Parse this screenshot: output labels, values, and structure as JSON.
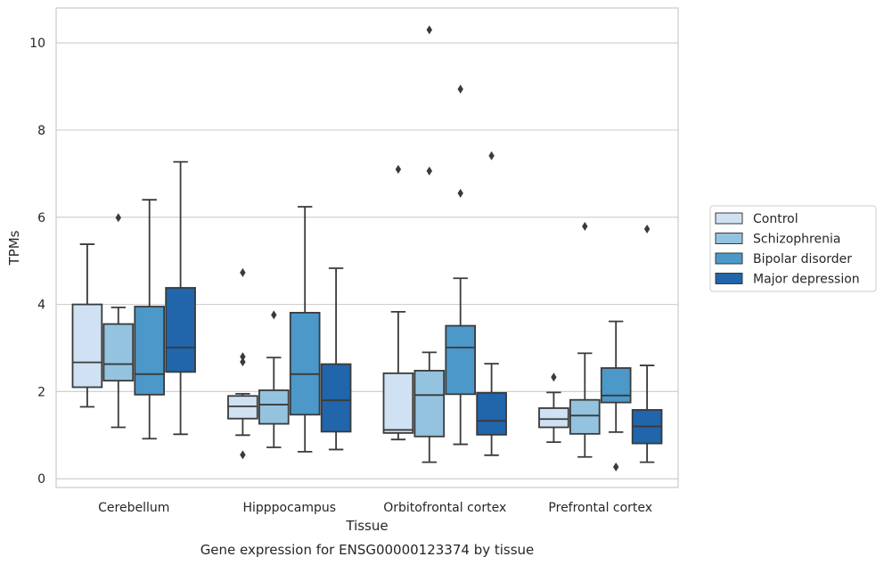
{
  "caption": "Gene expression for ENSG00000123374 by tissue",
  "colors": {
    "Control": "#cfe1f2",
    "Schizophrenia": "#93c3df",
    "Bipolar disorder": "#4b98c9",
    "Major depression": "#2165ab",
    "line": "#3a3a3a",
    "grid": "#d0d0d0",
    "frame": "#cccccc"
  },
  "chart_data": {
    "type": "box",
    "xlabel": "Tissue",
    "ylabel": "TPMs",
    "ylim": [
      -0.2,
      10.8
    ],
    "yticks": [
      0,
      2,
      4,
      6,
      8,
      10
    ],
    "grid": true,
    "legend_position": "right-outside",
    "categories": [
      "Cerebellum",
      "Hipppocampus",
      "Orbitofrontal cortex",
      "Prefrontal cortex"
    ],
    "series": [
      {
        "name": "Control",
        "boxes": [
          {
            "whisker_low": 1.65,
            "q1": 2.1,
            "median": 2.67,
            "q3": 4.0,
            "whisker_high": 5.38,
            "outliers": []
          },
          {
            "whisker_low": 1.0,
            "q1": 1.38,
            "median": 1.66,
            "q3": 1.9,
            "whisker_high": 1.95,
            "outliers": [
              0.55,
              2.68,
              2.8,
              4.73
            ]
          },
          {
            "whisker_low": 0.9,
            "q1": 1.05,
            "median": 1.12,
            "q3": 2.42,
            "whisker_high": 3.83,
            "outliers": [
              7.1
            ]
          },
          {
            "whisker_low": 0.84,
            "q1": 1.18,
            "median": 1.37,
            "q3": 1.62,
            "whisker_high": 1.98,
            "outliers": [
              2.33
            ]
          }
        ]
      },
      {
        "name": "Schizophrenia",
        "boxes": [
          {
            "whisker_low": 1.18,
            "q1": 2.25,
            "median": 2.63,
            "q3": 3.55,
            "whisker_high": 3.93,
            "outliers": [
              5.99
            ]
          },
          {
            "whisker_low": 0.72,
            "q1": 1.26,
            "median": 1.7,
            "q3": 2.03,
            "whisker_high": 2.78,
            "outliers": [
              3.76
            ]
          },
          {
            "whisker_low": 0.38,
            "q1": 0.97,
            "median": 1.92,
            "q3": 2.48,
            "whisker_high": 2.9,
            "outliers": [
              7.06,
              10.3
            ]
          },
          {
            "whisker_low": 0.5,
            "q1": 1.03,
            "median": 1.45,
            "q3": 1.81,
            "whisker_high": 2.88,
            "outliers": [
              5.79
            ]
          }
        ]
      },
      {
        "name": "Bipolar disorder",
        "boxes": [
          {
            "whisker_low": 0.92,
            "q1": 1.93,
            "median": 2.4,
            "q3": 3.95,
            "whisker_high": 6.4,
            "outliers": []
          },
          {
            "whisker_low": 0.62,
            "q1": 1.47,
            "median": 2.4,
            "q3": 3.81,
            "whisker_high": 6.24,
            "outliers": []
          },
          {
            "whisker_low": 0.79,
            "q1": 1.94,
            "median": 3.01,
            "q3": 3.51,
            "whisker_high": 4.6,
            "outliers": [
              6.55,
              8.94
            ]
          },
          {
            "whisker_low": 1.07,
            "q1": 1.75,
            "median": 1.91,
            "q3": 2.54,
            "whisker_high": 3.61,
            "outliers": [
              0.27
            ]
          }
        ]
      },
      {
        "name": "Major depression",
        "boxes": [
          {
            "whisker_low": 1.02,
            "q1": 2.45,
            "median": 3.01,
            "q3": 4.38,
            "whisker_high": 7.27,
            "outliers": []
          },
          {
            "whisker_low": 0.67,
            "q1": 1.08,
            "median": 1.8,
            "q3": 2.63,
            "whisker_high": 4.83,
            "outliers": []
          },
          {
            "whisker_low": 0.54,
            "q1": 1.01,
            "median": 1.33,
            "q3": 1.97,
            "whisker_high": 2.64,
            "outliers": [
              7.41
            ]
          },
          {
            "whisker_low": 0.38,
            "q1": 0.81,
            "median": 1.2,
            "q3": 1.58,
            "whisker_high": 2.6,
            "outliers": [
              5.73
            ]
          }
        ]
      }
    ]
  }
}
